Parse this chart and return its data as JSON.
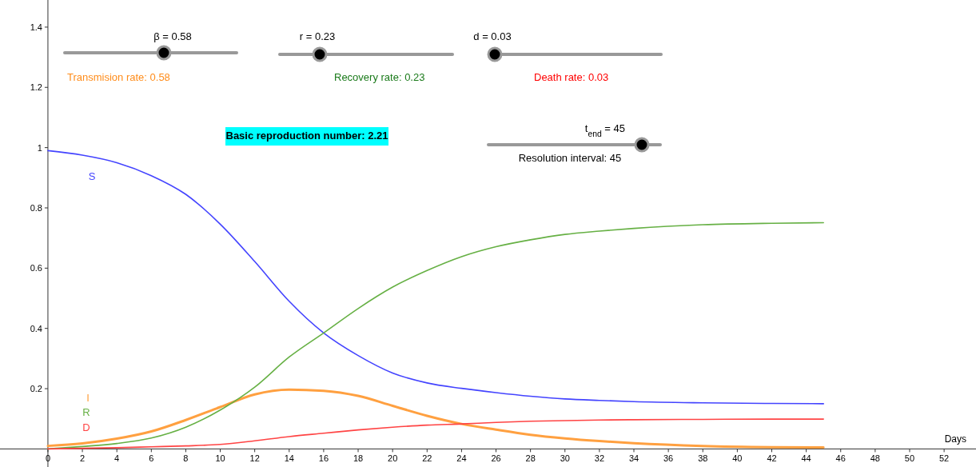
{
  "chart_data": {
    "type": "line",
    "xlabel": "Days",
    "x": [
      0,
      2,
      4,
      6,
      8,
      10,
      12,
      14,
      16,
      18,
      20,
      22,
      24,
      26,
      28,
      30,
      32,
      34,
      38,
      42,
      45
    ],
    "xlim": [
      -2.78,
      53.85
    ],
    "ylim": [
      -0.06,
      1.49
    ],
    "xticks": [
      0,
      2,
      4,
      6,
      8,
      10,
      12,
      14,
      16,
      18,
      20,
      22,
      24,
      26,
      28,
      30,
      32,
      34,
      36,
      38,
      40,
      42,
      44,
      46,
      48,
      50,
      52
    ],
    "yticks": [
      0.2,
      0.4,
      0.6,
      0.8,
      1,
      1.2,
      1.4
    ],
    "grid": false,
    "series": [
      {
        "name": "S",
        "color": "#4444ff",
        "values": [
          0.99,
          0.975,
          0.95,
          0.907,
          0.845,
          0.746,
          0.622,
          0.49,
          0.385,
          0.31,
          0.252,
          0.219,
          0.201,
          0.187,
          0.175,
          0.166,
          0.161,
          0.157,
          0.153,
          0.151,
          0.15
        ]
      },
      {
        "name": "I",
        "color": "#ffa040",
        "values": [
          0.01,
          0.018,
          0.034,
          0.058,
          0.096,
          0.139,
          0.181,
          0.197,
          0.193,
          0.176,
          0.143,
          0.11,
          0.083,
          0.064,
          0.047,
          0.035,
          0.026,
          0.019,
          0.01,
          0.006,
          0.005
        ]
      },
      {
        "name": "R",
        "color": "#66b044",
        "values": [
          0,
          0.008,
          0.018,
          0.036,
          0.072,
          0.129,
          0.205,
          0.305,
          0.385,
          0.466,
          0.537,
          0.592,
          0.638,
          0.671,
          0.694,
          0.712,
          0.723,
          0.732,
          0.744,
          0.749,
          0.751
        ]
      },
      {
        "name": "D",
        "color": "#ff4444",
        "values": [
          0,
          0.002,
          0.004,
          0.007,
          0.01,
          0.015,
          0.027,
          0.041,
          0.052,
          0.063,
          0.072,
          0.079,
          0.083,
          0.088,
          0.092,
          0.094,
          0.096,
          0.097,
          0.098,
          0.099,
          0.099
        ]
      }
    ],
    "annotations": [
      "β = 0.58",
      "r = 0.23",
      "d = 0.03",
      "Transmision rate:  0.58",
      "Recovery rate: 0.23",
      "Death rate: 0.03",
      "Basic reproduction number: 2.21",
      "t$_{end}$ = 45",
      "Resolution interval: 45"
    ]
  }
}
